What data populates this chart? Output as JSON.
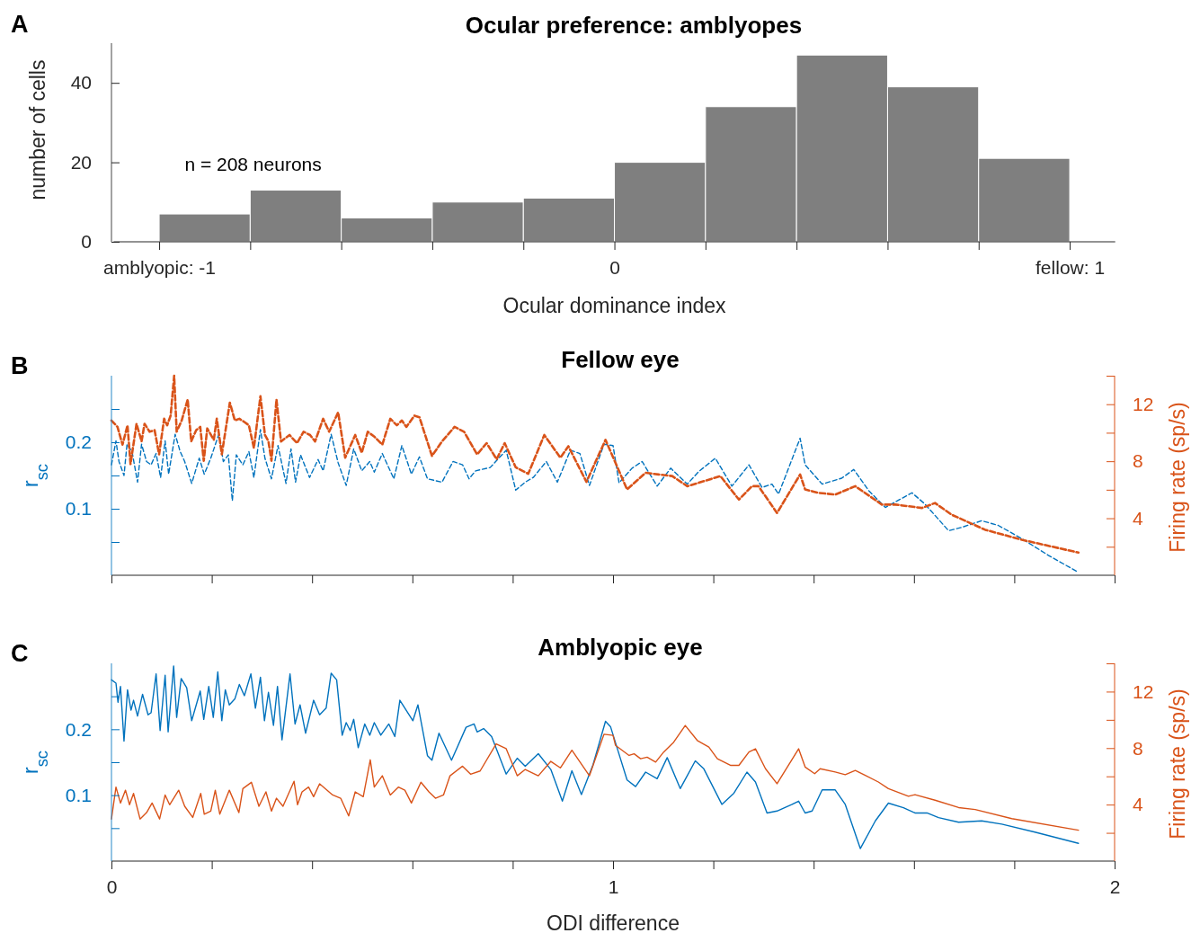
{
  "chart_data": [
    {
      "type": "histogram",
      "title": "Ocular preference: amblyopes",
      "xlabel": "Ocular dominance index",
      "ylabel": "number of cells",
      "annotations": [
        "A",
        "n = 208 neurons"
      ],
      "bins": [
        -1,
        -0.8,
        -0.6,
        -0.4,
        -0.2,
        0,
        0.2,
        0.4,
        0.6,
        0.8,
        1
      ],
      "values": [
        7,
        13,
        6,
        10,
        11,
        20,
        34,
        47,
        39,
        21
      ],
      "color": "#7f7f7f",
      "xlim": [
        -1.1,
        1.1
      ],
      "ylim": [
        0,
        50
      ],
      "xticks": [
        {
          "value": -1,
          "label": "amblyopic: -1"
        },
        {
          "value": -0.8,
          "label": null
        },
        {
          "value": -0.6,
          "label": null
        },
        {
          "value": -0.4,
          "label": null
        },
        {
          "value": -0.2,
          "label": null
        },
        0,
        {
          "value": 0.2,
          "label": null
        },
        {
          "value": 0.4,
          "label": null
        },
        {
          "value": 0.6,
          "label": null
        },
        {
          "value": 0.8,
          "label": null
        },
        {
          "value": 1,
          "label": "fellow: 1"
        }
      ],
      "yticks": [
        0,
        20,
        40
      ]
    },
    {
      "type": "line",
      "title": "Fellow eye",
      "ylabel": "r$_{sc}$",
      "y2label": "Firing rate (sp/s)",
      "annotations": [
        "B"
      ],
      "line_style": "dashed",
      "tick_labels": "y",
      "xlim": [
        0,
        2
      ],
      "ylim": [
        0,
        0.3
      ],
      "y2lim": [
        0,
        14
      ],
      "xticks": [
        0,
        {
          "value": 0.2,
          "label": null
        },
        {
          "value": 0.4,
          "label": null
        },
        {
          "value": 0.6,
          "label": null
        },
        {
          "value": 0.8,
          "label": null
        },
        1,
        {
          "value": 1.2,
          "label": null
        },
        {
          "value": 1.4,
          "label": null
        },
        {
          "value": 1.6,
          "label": null
        },
        {
          "value": 1.8,
          "label": null
        },
        2
      ],
      "yticks": [
        {
          "value": 0.05,
          "label": null
        },
        0.1,
        {
          "value": 0.15,
          "label": null
        },
        0.2,
        {
          "value": 0.25,
          "label": null
        }
      ],
      "y2ticks": [
        {
          "value": 2,
          "label": null
        },
        4,
        {
          "value": 6,
          "label": null
        },
        8,
        {
          "value": 10,
          "label": null
        },
        12,
        {
          "value": 14,
          "label": null
        }
      ],
      "series": [
        {
          "color": "#0072bd",
          "axis": "y",
          "x": [
            0,
            0.009,
            0.015,
            0.025,
            0.031,
            0.041,
            0.052,
            0.06,
            0.07,
            0.079,
            0.089,
            0.098,
            0.107,
            0.114,
            0.127,
            0.137,
            0.146,
            0.16,
            0.175,
            0.185,
            0.198,
            0.214,
            0.223,
            0.233,
            0.241,
            0.249,
            0.262,
            0.274,
            0.284,
            0.297,
            0.306,
            0.319,
            0.332,
            0.348,
            0.358,
            0.367,
            0.377,
            0.395,
            0.412,
            0.422,
            0.438,
            0.452,
            0.468,
            0.483,
            0.499,
            0.515,
            0.524,
            0.54,
            0.563,
            0.579,
            0.598,
            0.614,
            0.63,
            0.659,
            0.681,
            0.7,
            0.713,
            0.726,
            0.755,
            0.787,
            0.806,
            0.825,
            0.841,
            0.867,
            0.889,
            0.915,
            0.934,
            0.953,
            0.982,
            1.0,
            1.012,
            1.038,
            1.058,
            1.088,
            1.115,
            1.148,
            1.171,
            1.204,
            1.237,
            1.271,
            1.297,
            1.317,
            1.33,
            1.373,
            1.383,
            1.417,
            1.456,
            1.48,
            1.51,
            1.543,
            1.596,
            1.622,
            1.669,
            1.695,
            1.735,
            1.768,
            1.815,
            1.868,
            1.924
          ],
          "values": [
            0.166,
            0.202,
            0.171,
            0.15,
            0.197,
            0.186,
            0.14,
            0.197,
            0.171,
            0.166,
            0.183,
            0.147,
            0.202,
            0.152,
            0.212,
            0.186,
            0.171,
            0.138,
            0.176,
            0.152,
            0.176,
            0.212,
            0.171,
            0.181,
            0.112,
            0.181,
            0.166,
            0.186,
            0.147,
            0.219,
            0.176,
            0.145,
            0.195,
            0.138,
            0.19,
            0.14,
            0.181,
            0.147,
            0.174,
            0.157,
            0.212,
            0.169,
            0.135,
            0.19,
            0.157,
            0.171,
            0.155,
            0.183,
            0.145,
            0.195,
            0.152,
            0.178,
            0.145,
            0.14,
            0.171,
            0.166,
            0.145,
            0.157,
            0.162,
            0.188,
            0.128,
            0.14,
            0.147,
            0.171,
            0.14,
            0.188,
            0.183,
            0.135,
            0.197,
            0.195,
            0.139,
            0.161,
            0.171,
            0.134,
            0.161,
            0.137,
            0.156,
            0.176,
            0.134,
            0.166,
            0.132,
            0.137,
            0.122,
            0.206,
            0.166,
            0.137,
            0.146,
            0.159,
            0.127,
            0.102,
            0.124,
            0.107,
            0.067,
            0.072,
            0.082,
            0.075,
            0.055,
            0.03,
            0.006
          ]
        },
        {
          "color": "#d95319",
          "axis": "y2",
          "x": [
            0,
            0.012,
            0.022,
            0.032,
            0.038,
            0.05,
            0.06,
            0.066,
            0.076,
            0.086,
            0.095,
            0.105,
            0.111,
            0.118,
            0.125,
            0.13,
            0.14,
            0.152,
            0.159,
            0.169,
            0.177,
            0.184,
            0.191,
            0.204,
            0.21,
            0.22,
            0.236,
            0.246,
            0.255,
            0.265,
            0.274,
            0.284,
            0.297,
            0.306,
            0.313,
            0.319,
            0.329,
            0.338,
            0.355,
            0.37,
            0.383,
            0.396,
            0.406,
            0.422,
            0.434,
            0.452,
            0.466,
            0.486,
            0.499,
            0.511,
            0.524,
            0.54,
            0.556,
            0.569,
            0.579,
            0.588,
            0.604,
            0.614,
            0.639,
            0.659,
            0.684,
            0.703,
            0.729,
            0.748,
            0.768,
            0.784,
            0.806,
            0.831,
            0.863,
            0.895,
            0.911,
            0.947,
            0.985,
            1.028,
            1.065,
            1.091,
            1.118,
            1.148,
            1.171,
            1.214,
            1.251,
            1.277,
            1.29,
            1.327,
            1.373,
            1.383,
            1.41,
            1.443,
            1.483,
            1.536,
            1.563,
            1.616,
            1.642,
            1.675,
            1.742,
            1.815,
            1.928
          ],
          "values": [
            10.86,
            10.41,
            9.16,
            10.52,
            7.8,
            10.63,
            9.39,
            10.63,
            10.07,
            10.18,
            8.48,
            10.98,
            10.52,
            11.2,
            14.0,
            10.07,
            10.86,
            12.33,
            9.39,
            10.18,
            10.41,
            8.03,
            10.3,
            9.5,
            10.98,
            8.48,
            12.11,
            10.86,
            10.98,
            10.75,
            10.52,
            8.93,
            12.56,
            9.84,
            9.39,
            8.03,
            12.33,
            9.39,
            9.84,
            9.27,
            10.07,
            9.84,
            9.39,
            10.98,
            10.07,
            11.43,
            8.25,
            9.84,
            8.59,
            10.07,
            9.73,
            9.16,
            10.98,
            10.52,
            10.86,
            10.41,
            11.2,
            11.09,
            8.37,
            9.39,
            10.41,
            10.07,
            8.48,
            9.27,
            8.14,
            9.27,
            7.57,
            7.12,
            9.84,
            8.25,
            9.05,
            6.55,
            9.5,
            6.02,
            7.19,
            7.07,
            6.96,
            6.25,
            6.49,
            6.96,
            5.31,
            6.25,
            6.25,
            4.37,
            7.07,
            6.02,
            5.78,
            5.66,
            6.25,
            4.96,
            4.96,
            4.72,
            5.07,
            4.25,
            3.19,
            2.49,
            1.59
          ]
        }
      ]
    },
    {
      "type": "line",
      "title": "Amblyopic eye",
      "xlabel": "ODI difference",
      "ylabel": "r$_{sc}$",
      "y2label": "Firing rate (sp/s)",
      "annotations": [
        "C"
      ],
      "line_style": "solid",
      "xlim": [
        0,
        2
      ],
      "ylim": [
        0,
        0.3
      ],
      "y2lim": [
        0,
        14
      ],
      "xticks": [
        0,
        {
          "value": 0.2,
          "label": null
        },
        {
          "value": 0.4,
          "label": null
        },
        {
          "value": 0.6,
          "label": null
        },
        {
          "value": 0.8,
          "label": null
        },
        1,
        {
          "value": 1.2,
          "label": null
        },
        {
          "value": 1.4,
          "label": null
        },
        {
          "value": 1.6,
          "label": null
        },
        {
          "value": 1.8,
          "label": null
        },
        2
      ],
      "yticks": [
        {
          "value": 0.05,
          "label": null
        },
        0.1,
        {
          "value": 0.15,
          "label": null
        },
        0.2,
        {
          "value": 0.25,
          "label": null
        }
      ],
      "y2ticks": [
        {
          "value": 2,
          "label": null
        },
        4,
        {
          "value": 6,
          "label": null
        },
        8,
        {
          "value": 10,
          "label": null
        },
        12,
        {
          "value": 14,
          "label": null
        }
      ],
      "series": [
        {
          "color": "#0072bd",
          "axis": "y",
          "x": [
            0,
            0.009,
            0.013,
            0.018,
            0.025,
            0.032,
            0.039,
            0.044,
            0.052,
            0.062,
            0.073,
            0.079,
            0.089,
            0.097,
            0.107,
            0.113,
            0.124,
            0.13,
            0.139,
            0.15,
            0.16,
            0.177,
            0.184,
            0.194,
            0.203,
            0.212,
            0.22,
            0.227,
            0.235,
            0.246,
            0.255,
            0.265,
            0.278,
            0.287,
            0.297,
            0.305,
            0.313,
            0.323,
            0.331,
            0.34,
            0.356,
            0.366,
            0.376,
            0.387,
            0.403,
            0.415,
            0.428,
            0.438,
            0.449,
            0.46,
            0.468,
            0.476,
            0.483,
            0.492,
            0.505,
            0.515,
            0.524,
            0.537,
            0.553,
            0.565,
            0.575,
            0.601,
            0.611,
            0.63,
            0.639,
            0.653,
            0.678,
            0.707,
            0.723,
            0.729,
            0.742,
            0.758,
            0.787,
            0.809,
            0.825,
            0.851,
            0.876,
            0.899,
            0.918,
            0.937,
            0.96,
            0.985,
            0.995,
            1.008,
            1.028,
            1.045,
            1.065,
            1.088,
            1.108,
            1.134,
            1.164,
            1.181,
            1.217,
            1.241,
            1.267,
            1.284,
            1.307,
            1.327,
            1.357,
            1.37,
            1.383,
            1.397,
            1.417,
            1.443,
            1.463,
            1.493,
            1.523,
            1.549,
            1.579,
            1.602,
            1.626,
            1.649,
            1.689,
            1.735,
            1.775,
            1.841,
            1.928
          ],
          "values": [
            0.275,
            0.27,
            0.241,
            0.265,
            0.182,
            0.26,
            0.229,
            0.244,
            0.22,
            0.253,
            0.222,
            0.225,
            0.284,
            0.198,
            0.282,
            0.196,
            0.296,
            0.218,
            0.277,
            0.263,
            0.213,
            0.258,
            0.215,
            0.265,
            0.218,
            0.287,
            0.213,
            0.26,
            0.237,
            0.246,
            0.268,
            0.251,
            0.284,
            0.232,
            0.279,
            0.213,
            0.256,
            0.206,
            0.265,
            0.184,
            0.284,
            0.208,
            0.237,
            0.194,
            0.244,
            0.222,
            0.232,
            0.285,
            0.275,
            0.191,
            0.21,
            0.198,
            0.215,
            0.172,
            0.208,
            0.191,
            0.21,
            0.191,
            0.208,
            0.189,
            0.244,
            0.213,
            0.237,
            0.16,
            0.153,
            0.194,
            0.153,
            0.203,
            0.208,
            0.196,
            0.201,
            0.189,
            0.132,
            0.156,
            0.144,
            0.163,
            0.139,
            0.091,
            0.137,
            0.101,
            0.146,
            0.212,
            0.204,
            0.172,
            0.123,
            0.113,
            0.135,
            0.125,
            0.157,
            0.11,
            0.152,
            0.14,
            0.086,
            0.103,
            0.135,
            0.12,
            0.073,
            0.076,
            0.086,
            0.091,
            0.073,
            0.076,
            0.108,
            0.108,
            0.086,
            0.019,
            0.061,
            0.088,
            0.081,
            0.073,
            0.073,
            0.066,
            0.059,
            0.061,
            0.056,
            0.044,
            0.027
          ]
        },
        {
          "color": "#d95319",
          "axis": "y2",
          "x": [
            0,
            0.009,
            0.018,
            0.028,
            0.036,
            0.044,
            0.057,
            0.07,
            0.081,
            0.096,
            0.107,
            0.116,
            0.134,
            0.146,
            0.162,
            0.178,
            0.185,
            0.198,
            0.207,
            0.216,
            0.235,
            0.254,
            0.262,
            0.279,
            0.294,
            0.308,
            0.319,
            0.329,
            0.342,
            0.364,
            0.371,
            0.38,
            0.393,
            0.403,
            0.415,
            0.441,
            0.457,
            0.473,
            0.486,
            0.502,
            0.516,
            0.524,
            0.54,
            0.556,
            0.572,
            0.585,
            0.598,
            0.617,
            0.633,
            0.646,
            0.662,
            0.675,
            0.7,
            0.716,
            0.735,
            0.767,
            0.787,
            0.809,
            0.825,
            0.851,
            0.876,
            0.895,
            0.918,
            0.953,
            0.982,
            1.0,
            1.005,
            1.032,
            1.042,
            1.055,
            1.068,
            1.085,
            1.101,
            1.121,
            1.144,
            1.168,
            1.191,
            1.208,
            1.234,
            1.251,
            1.271,
            1.284,
            1.304,
            1.327,
            1.37,
            1.383,
            1.402,
            1.413,
            1.443,
            1.463,
            1.483,
            1.503,
            1.529,
            1.549,
            1.589,
            1.602,
            1.642,
            1.689,
            1.722,
            1.795,
            1.928
          ],
          "values": [
            2.98,
            5.24,
            4.11,
            5.02,
            3.99,
            4.79,
            2.98,
            3.43,
            4.11,
            2.98,
            4.68,
            3.99,
            5.02,
            3.88,
            3.09,
            4.79,
            3.32,
            3.54,
            5.02,
            3.32,
            5.02,
            3.43,
            5.13,
            5.58,
            3.88,
            4.9,
            3.54,
            4.45,
            3.88,
            5.65,
            3.99,
            4.9,
            5.24,
            4.56,
            5.47,
            4.68,
            4.45,
            3.2,
            4.9,
            4.56,
            7.17,
            5.24,
            6.04,
            4.68,
            5.24,
            5.02,
            4.11,
            5.58,
            4.9,
            4.45,
            4.68,
            6.04,
            6.72,
            6.15,
            6.38,
            8.3,
            7.96,
            6.04,
            6.49,
            6.04,
            7.06,
            6.6,
            7.85,
            6.04,
            8.98,
            8.9,
            8.19,
            7.48,
            7.6,
            7.25,
            7.36,
            7.01,
            7.72,
            8.42,
            9.6,
            8.54,
            8.07,
            7.25,
            6.78,
            6.78,
            7.72,
            7.95,
            6.54,
            5.48,
            7.95,
            6.66,
            6.19,
            6.54,
            6.31,
            6.12,
            6.42,
            6.07,
            5.6,
            5.13,
            4.59,
            4.7,
            4.31,
            3.79,
            3.65,
            3.01,
            2.19
          ]
        }
      ]
    }
  ]
}
